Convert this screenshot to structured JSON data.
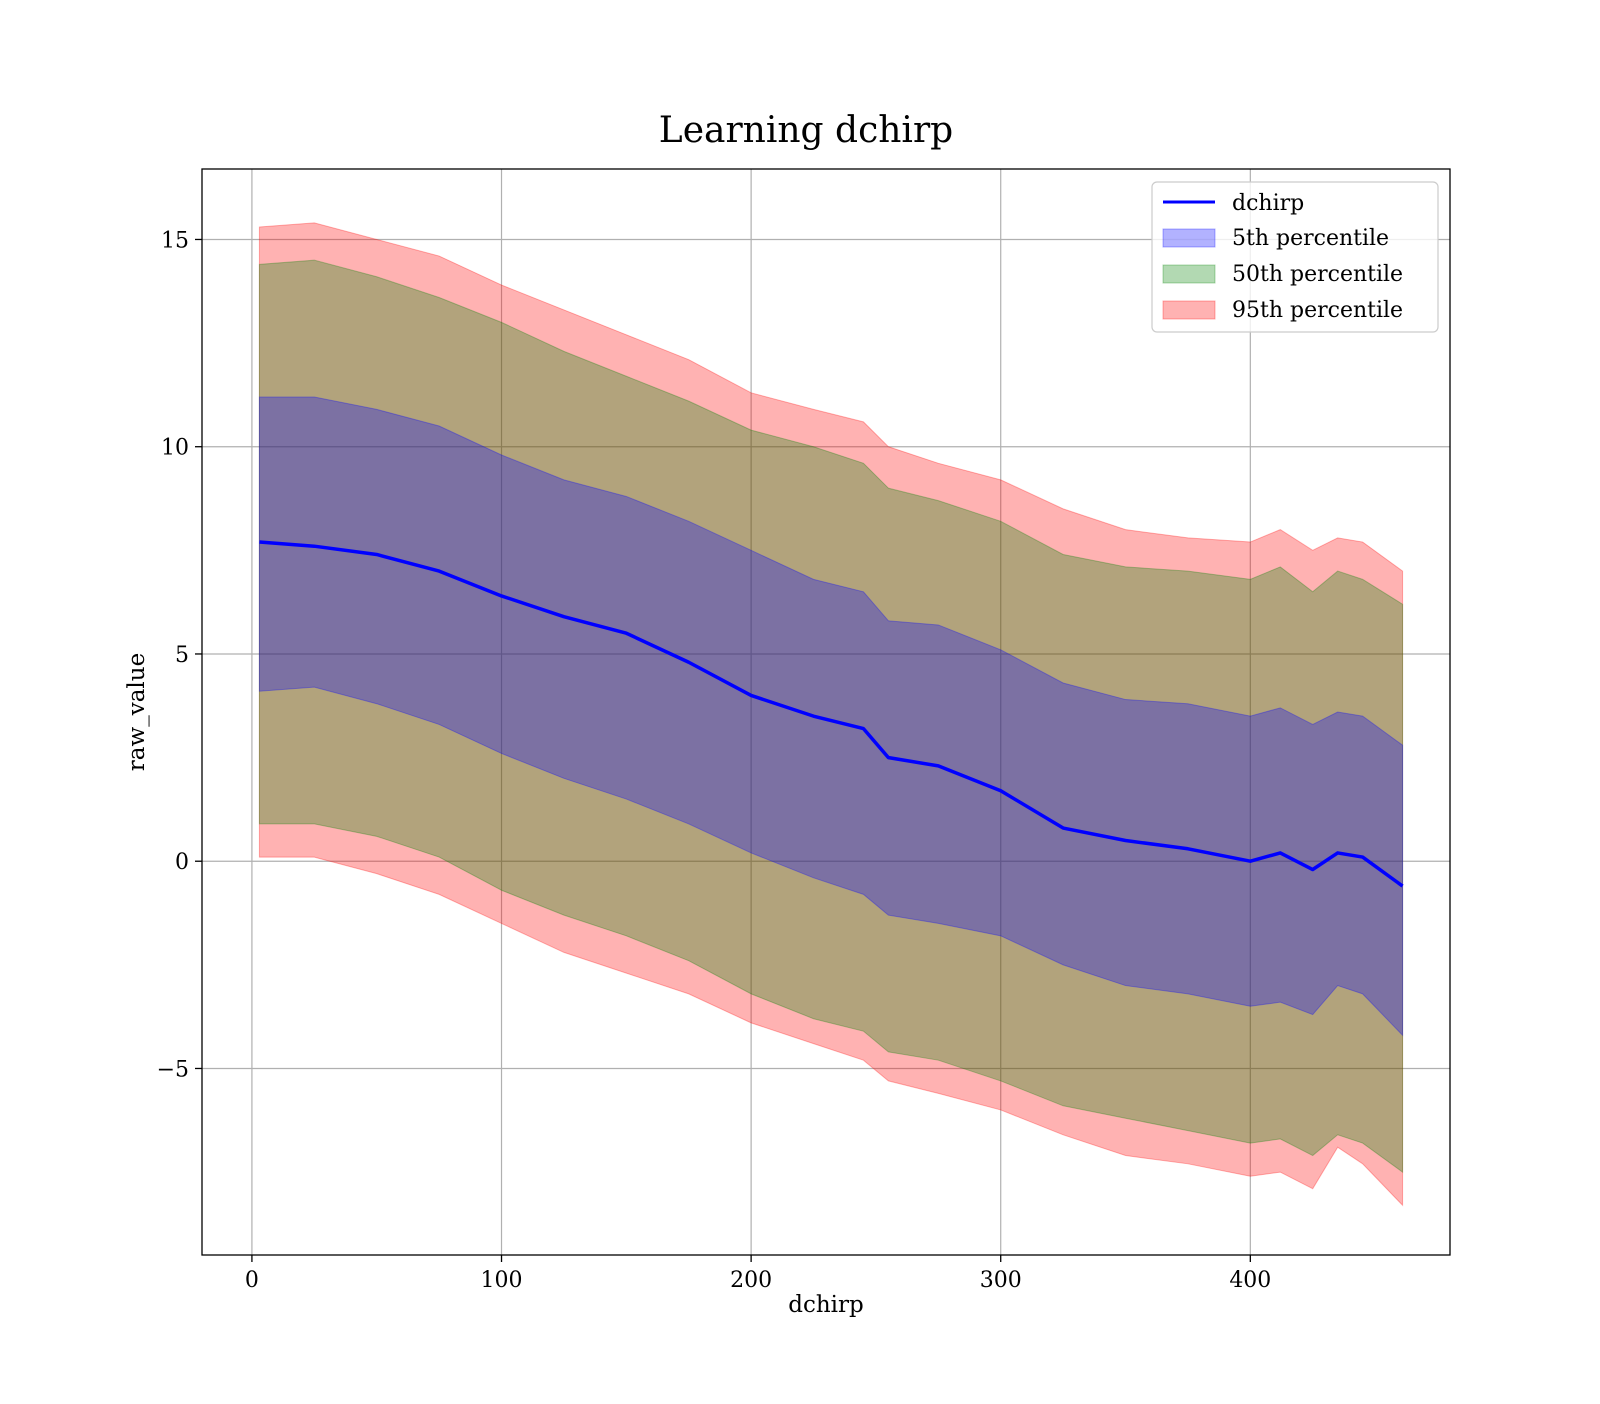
{
  "chart_data": {
    "type": "area",
    "title": "Learning dchirp",
    "xlabel": "dchirp",
    "ylabel": "raw_value",
    "xlim": [
      -20,
      480
    ],
    "ylim": [
      -9.5,
      16.7
    ],
    "xticks": [
      0,
      100,
      200,
      300,
      400
    ],
    "xtick_labels": [
      "0",
      "100",
      "200",
      "300",
      "400"
    ],
    "yticks": [
      -5,
      0,
      5,
      10,
      15
    ],
    "ytick_labels": [
      "−5",
      "0",
      "5",
      "10",
      "15"
    ],
    "grid": true,
    "legend_position": "top-right",
    "x": [
      3,
      25,
      50,
      75,
      100,
      125,
      150,
      175,
      200,
      225,
      245,
      255,
      275,
      300,
      325,
      350,
      375,
      400,
      412,
      425,
      435,
      445,
      461
    ],
    "series": [
      {
        "name": "dchirp",
        "kind": "line",
        "color": "#0000ff",
        "values": [
          7.7,
          7.6,
          7.4,
          7.0,
          6.4,
          5.9,
          5.5,
          4.8,
          4.0,
          3.5,
          3.2,
          2.5,
          2.3,
          1.7,
          0.8,
          0.5,
          0.3,
          0.0,
          0.2,
          -0.2,
          0.2,
          0.1,
          -0.6
        ]
      },
      {
        "name": "5th percentile",
        "kind": "band",
        "color": "#0000ff",
        "lower": [
          4.1,
          4.2,
          3.8,
          3.3,
          2.6,
          2.0,
          1.5,
          0.9,
          0.2,
          -0.4,
          -0.8,
          -1.3,
          -1.5,
          -1.8,
          -2.5,
          -3.0,
          -3.2,
          -3.5,
          -3.4,
          -3.7,
          -3.0,
          -3.2,
          -4.2
        ],
        "upper": [
          11.2,
          11.2,
          10.9,
          10.5,
          9.8,
          9.2,
          8.8,
          8.2,
          7.5,
          6.8,
          6.5,
          5.8,
          5.7,
          5.1,
          4.3,
          3.9,
          3.8,
          3.5,
          3.7,
          3.3,
          3.6,
          3.5,
          2.8
        ]
      },
      {
        "name": "50th percentile",
        "kind": "band",
        "color": "#008000",
        "lower": [
          0.9,
          0.9,
          0.6,
          0.1,
          -0.7,
          -1.3,
          -1.8,
          -2.4,
          -3.2,
          -3.8,
          -4.1,
          -4.6,
          -4.8,
          -5.3,
          -5.9,
          -6.2,
          -6.5,
          -6.8,
          -6.7,
          -7.1,
          -6.6,
          -6.8,
          -7.5
        ],
        "upper": [
          14.4,
          14.5,
          14.1,
          13.6,
          13.0,
          12.3,
          11.7,
          11.1,
          10.4,
          10.0,
          9.6,
          9.0,
          8.7,
          8.2,
          7.4,
          7.1,
          7.0,
          6.8,
          7.1,
          6.5,
          7.0,
          6.8,
          6.2
        ]
      },
      {
        "name": "95th percentile",
        "kind": "band",
        "color": "#ff0000",
        "lower": [
          0.1,
          0.1,
          -0.3,
          -0.8,
          -1.5,
          -2.2,
          -2.7,
          -3.2,
          -3.9,
          -4.4,
          -4.8,
          -5.3,
          -5.6,
          -6.0,
          -6.6,
          -7.1,
          -7.3,
          -7.6,
          -7.5,
          -7.9,
          -6.9,
          -7.3,
          -8.3
        ],
        "upper": [
          15.3,
          15.4,
          15.0,
          14.6,
          13.9,
          13.3,
          12.7,
          12.1,
          11.3,
          10.9,
          10.6,
          10.0,
          9.6,
          9.2,
          8.5,
          8.0,
          7.8,
          7.7,
          8.0,
          7.5,
          7.8,
          7.7,
          7.0
        ]
      }
    ]
  }
}
